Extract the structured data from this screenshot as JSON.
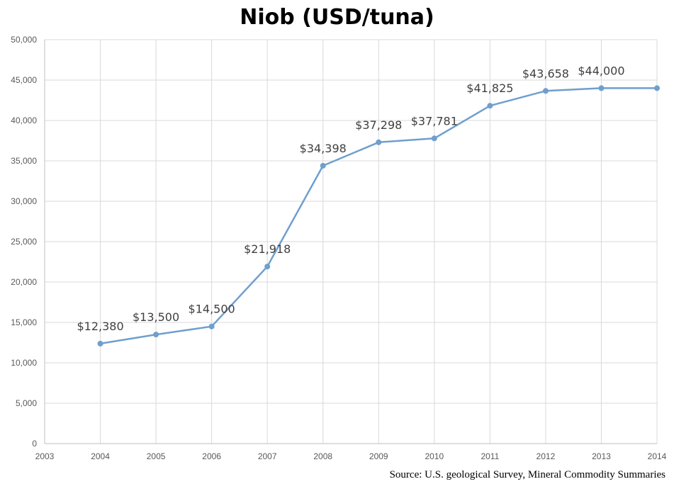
{
  "chart_data": {
    "type": "line",
    "title": "Niob (USD/tuna)",
    "xlabel": "",
    "ylabel": "",
    "x_ticks": [
      "2003",
      "2004",
      "2005",
      "2006",
      "2007",
      "2008",
      "2009",
      "2010",
      "2011",
      "2012",
      "2013",
      "2014"
    ],
    "y_ticks": [
      "0",
      "5,000",
      "10,000",
      "15,000",
      "20,000",
      "25,000",
      "30,000",
      "35,000",
      "40,000",
      "45,000",
      "50,000"
    ],
    "xlim": [
      2003,
      2014
    ],
    "ylim": [
      0,
      50000
    ],
    "grid": true,
    "legend": "none",
    "line_color": "#6f9fcd",
    "grid_color": "#d9d9d9",
    "series": [
      {
        "x": [
          2004,
          2005,
          2006,
          2007,
          2008,
          2009,
          2010,
          2011,
          2012,
          2013,
          2014
        ],
        "values": [
          12380,
          13500,
          14500,
          21918,
          34398,
          37298,
          37781,
          41825,
          43658,
          44000,
          44000
        ],
        "labels": [
          "$12,380",
          "$13,500",
          "$14,500",
          "$21,918",
          "$34,398",
          "$37,298",
          "$37,781",
          "$41,825",
          "$43,658",
          "$44,000",
          ""
        ]
      }
    ],
    "source": "Source: U.S. geological Survey, Mineral Commodity Summaries"
  }
}
